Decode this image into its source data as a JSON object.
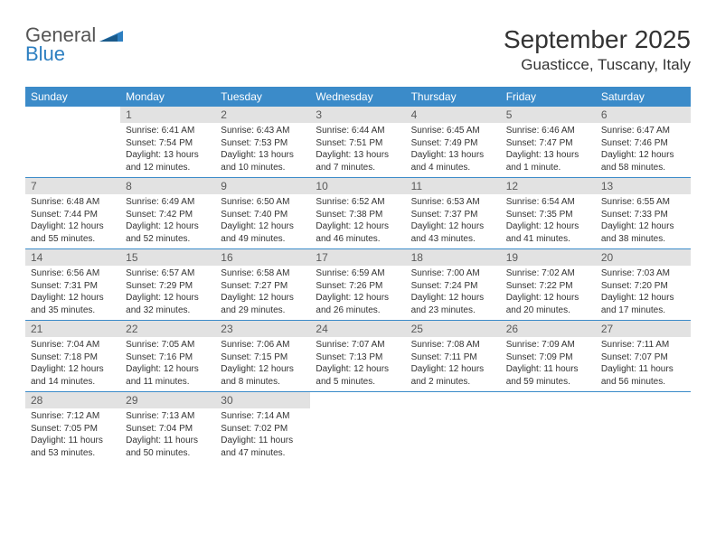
{
  "brand": {
    "word1": "General",
    "word2": "Blue"
  },
  "title": "September 2025",
  "location": "Guasticce, Tuscany, Italy",
  "colors": {
    "header_bg": "#3b8bc9",
    "daynum_bg": "#e2e2e2",
    "text": "#333333",
    "brand_gray": "#555555",
    "brand_blue": "#2d7fc1"
  },
  "weekdays": [
    "Sunday",
    "Monday",
    "Tuesday",
    "Wednesday",
    "Thursday",
    "Friday",
    "Saturday"
  ],
  "weeks": [
    [
      {
        "n": "",
        "sr": "",
        "ss": "",
        "dl": ""
      },
      {
        "n": "1",
        "sr": "Sunrise: 6:41 AM",
        "ss": "Sunset: 7:54 PM",
        "dl": "Daylight: 13 hours and 12 minutes."
      },
      {
        "n": "2",
        "sr": "Sunrise: 6:43 AM",
        "ss": "Sunset: 7:53 PM",
        "dl": "Daylight: 13 hours and 10 minutes."
      },
      {
        "n": "3",
        "sr": "Sunrise: 6:44 AM",
        "ss": "Sunset: 7:51 PM",
        "dl": "Daylight: 13 hours and 7 minutes."
      },
      {
        "n": "4",
        "sr": "Sunrise: 6:45 AM",
        "ss": "Sunset: 7:49 PM",
        "dl": "Daylight: 13 hours and 4 minutes."
      },
      {
        "n": "5",
        "sr": "Sunrise: 6:46 AM",
        "ss": "Sunset: 7:47 PM",
        "dl": "Daylight: 13 hours and 1 minute."
      },
      {
        "n": "6",
        "sr": "Sunrise: 6:47 AM",
        "ss": "Sunset: 7:46 PM",
        "dl": "Daylight: 12 hours and 58 minutes."
      }
    ],
    [
      {
        "n": "7",
        "sr": "Sunrise: 6:48 AM",
        "ss": "Sunset: 7:44 PM",
        "dl": "Daylight: 12 hours and 55 minutes."
      },
      {
        "n": "8",
        "sr": "Sunrise: 6:49 AM",
        "ss": "Sunset: 7:42 PM",
        "dl": "Daylight: 12 hours and 52 minutes."
      },
      {
        "n": "9",
        "sr": "Sunrise: 6:50 AM",
        "ss": "Sunset: 7:40 PM",
        "dl": "Daylight: 12 hours and 49 minutes."
      },
      {
        "n": "10",
        "sr": "Sunrise: 6:52 AM",
        "ss": "Sunset: 7:38 PM",
        "dl": "Daylight: 12 hours and 46 minutes."
      },
      {
        "n": "11",
        "sr": "Sunrise: 6:53 AM",
        "ss": "Sunset: 7:37 PM",
        "dl": "Daylight: 12 hours and 43 minutes."
      },
      {
        "n": "12",
        "sr": "Sunrise: 6:54 AM",
        "ss": "Sunset: 7:35 PM",
        "dl": "Daylight: 12 hours and 41 minutes."
      },
      {
        "n": "13",
        "sr": "Sunrise: 6:55 AM",
        "ss": "Sunset: 7:33 PM",
        "dl": "Daylight: 12 hours and 38 minutes."
      }
    ],
    [
      {
        "n": "14",
        "sr": "Sunrise: 6:56 AM",
        "ss": "Sunset: 7:31 PM",
        "dl": "Daylight: 12 hours and 35 minutes."
      },
      {
        "n": "15",
        "sr": "Sunrise: 6:57 AM",
        "ss": "Sunset: 7:29 PM",
        "dl": "Daylight: 12 hours and 32 minutes."
      },
      {
        "n": "16",
        "sr": "Sunrise: 6:58 AM",
        "ss": "Sunset: 7:27 PM",
        "dl": "Daylight: 12 hours and 29 minutes."
      },
      {
        "n": "17",
        "sr": "Sunrise: 6:59 AM",
        "ss": "Sunset: 7:26 PM",
        "dl": "Daylight: 12 hours and 26 minutes."
      },
      {
        "n": "18",
        "sr": "Sunrise: 7:00 AM",
        "ss": "Sunset: 7:24 PM",
        "dl": "Daylight: 12 hours and 23 minutes."
      },
      {
        "n": "19",
        "sr": "Sunrise: 7:02 AM",
        "ss": "Sunset: 7:22 PM",
        "dl": "Daylight: 12 hours and 20 minutes."
      },
      {
        "n": "20",
        "sr": "Sunrise: 7:03 AM",
        "ss": "Sunset: 7:20 PM",
        "dl": "Daylight: 12 hours and 17 minutes."
      }
    ],
    [
      {
        "n": "21",
        "sr": "Sunrise: 7:04 AM",
        "ss": "Sunset: 7:18 PM",
        "dl": "Daylight: 12 hours and 14 minutes."
      },
      {
        "n": "22",
        "sr": "Sunrise: 7:05 AM",
        "ss": "Sunset: 7:16 PM",
        "dl": "Daylight: 12 hours and 11 minutes."
      },
      {
        "n": "23",
        "sr": "Sunrise: 7:06 AM",
        "ss": "Sunset: 7:15 PM",
        "dl": "Daylight: 12 hours and 8 minutes."
      },
      {
        "n": "24",
        "sr": "Sunrise: 7:07 AM",
        "ss": "Sunset: 7:13 PM",
        "dl": "Daylight: 12 hours and 5 minutes."
      },
      {
        "n": "25",
        "sr": "Sunrise: 7:08 AM",
        "ss": "Sunset: 7:11 PM",
        "dl": "Daylight: 12 hours and 2 minutes."
      },
      {
        "n": "26",
        "sr": "Sunrise: 7:09 AM",
        "ss": "Sunset: 7:09 PM",
        "dl": "Daylight: 11 hours and 59 minutes."
      },
      {
        "n": "27",
        "sr": "Sunrise: 7:11 AM",
        "ss": "Sunset: 7:07 PM",
        "dl": "Daylight: 11 hours and 56 minutes."
      }
    ],
    [
      {
        "n": "28",
        "sr": "Sunrise: 7:12 AM",
        "ss": "Sunset: 7:05 PM",
        "dl": "Daylight: 11 hours and 53 minutes."
      },
      {
        "n": "29",
        "sr": "Sunrise: 7:13 AM",
        "ss": "Sunset: 7:04 PM",
        "dl": "Daylight: 11 hours and 50 minutes."
      },
      {
        "n": "30",
        "sr": "Sunrise: 7:14 AM",
        "ss": "Sunset: 7:02 PM",
        "dl": "Daylight: 11 hours and 47 minutes."
      },
      {
        "n": "",
        "sr": "",
        "ss": "",
        "dl": ""
      },
      {
        "n": "",
        "sr": "",
        "ss": "",
        "dl": ""
      },
      {
        "n": "",
        "sr": "",
        "ss": "",
        "dl": ""
      },
      {
        "n": "",
        "sr": "",
        "ss": "",
        "dl": ""
      }
    ]
  ]
}
